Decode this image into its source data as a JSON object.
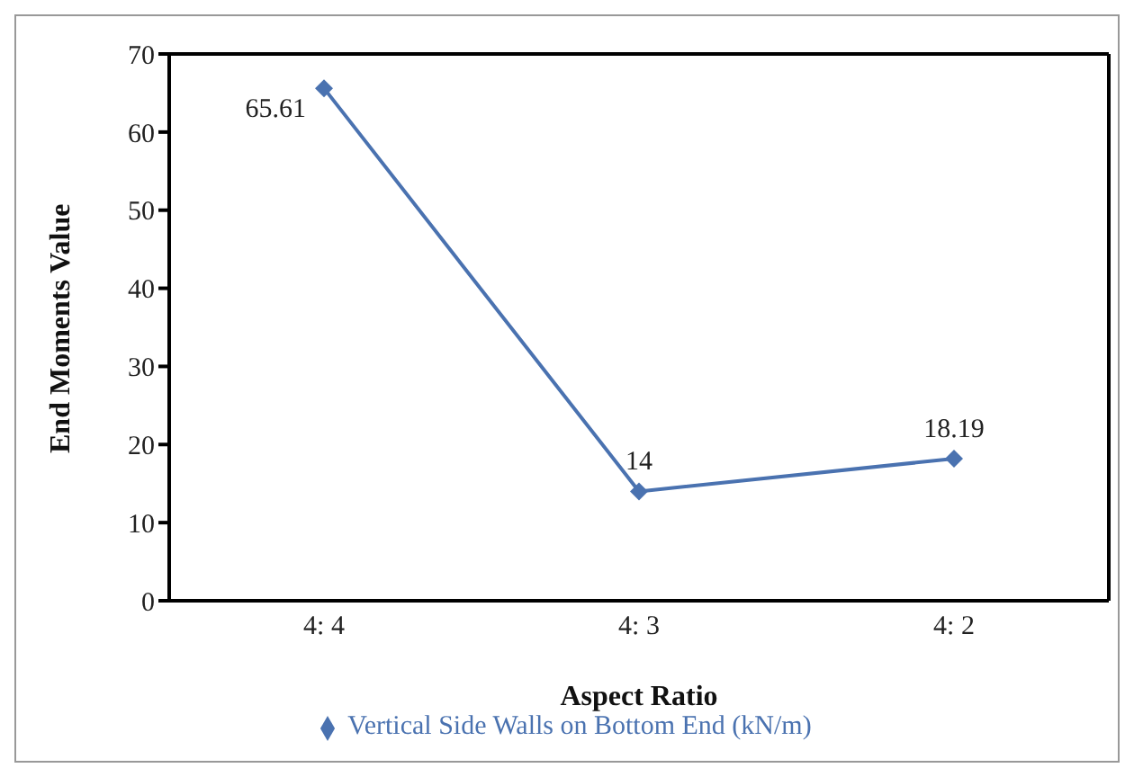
{
  "chart_data": {
    "type": "line",
    "xlabel": "Aspect Ratio",
    "ylabel": "End Moments Value",
    "categories": [
      "4: 4",
      "4: 3",
      "4: 2"
    ],
    "series": [
      {
        "name": "Vertical Side Walls on Bottom End (kN/m)",
        "color": "#4a72b0",
        "values": [
          65.61,
          14,
          18.19
        ]
      }
    ],
    "ylim": [
      0,
      70
    ],
    "yticks": [
      0,
      10,
      20,
      30,
      40,
      50,
      60,
      70
    ],
    "grid": false,
    "legend": "bottom",
    "marker": "diamond",
    "line_style": "solid",
    "data_labels": true
  }
}
